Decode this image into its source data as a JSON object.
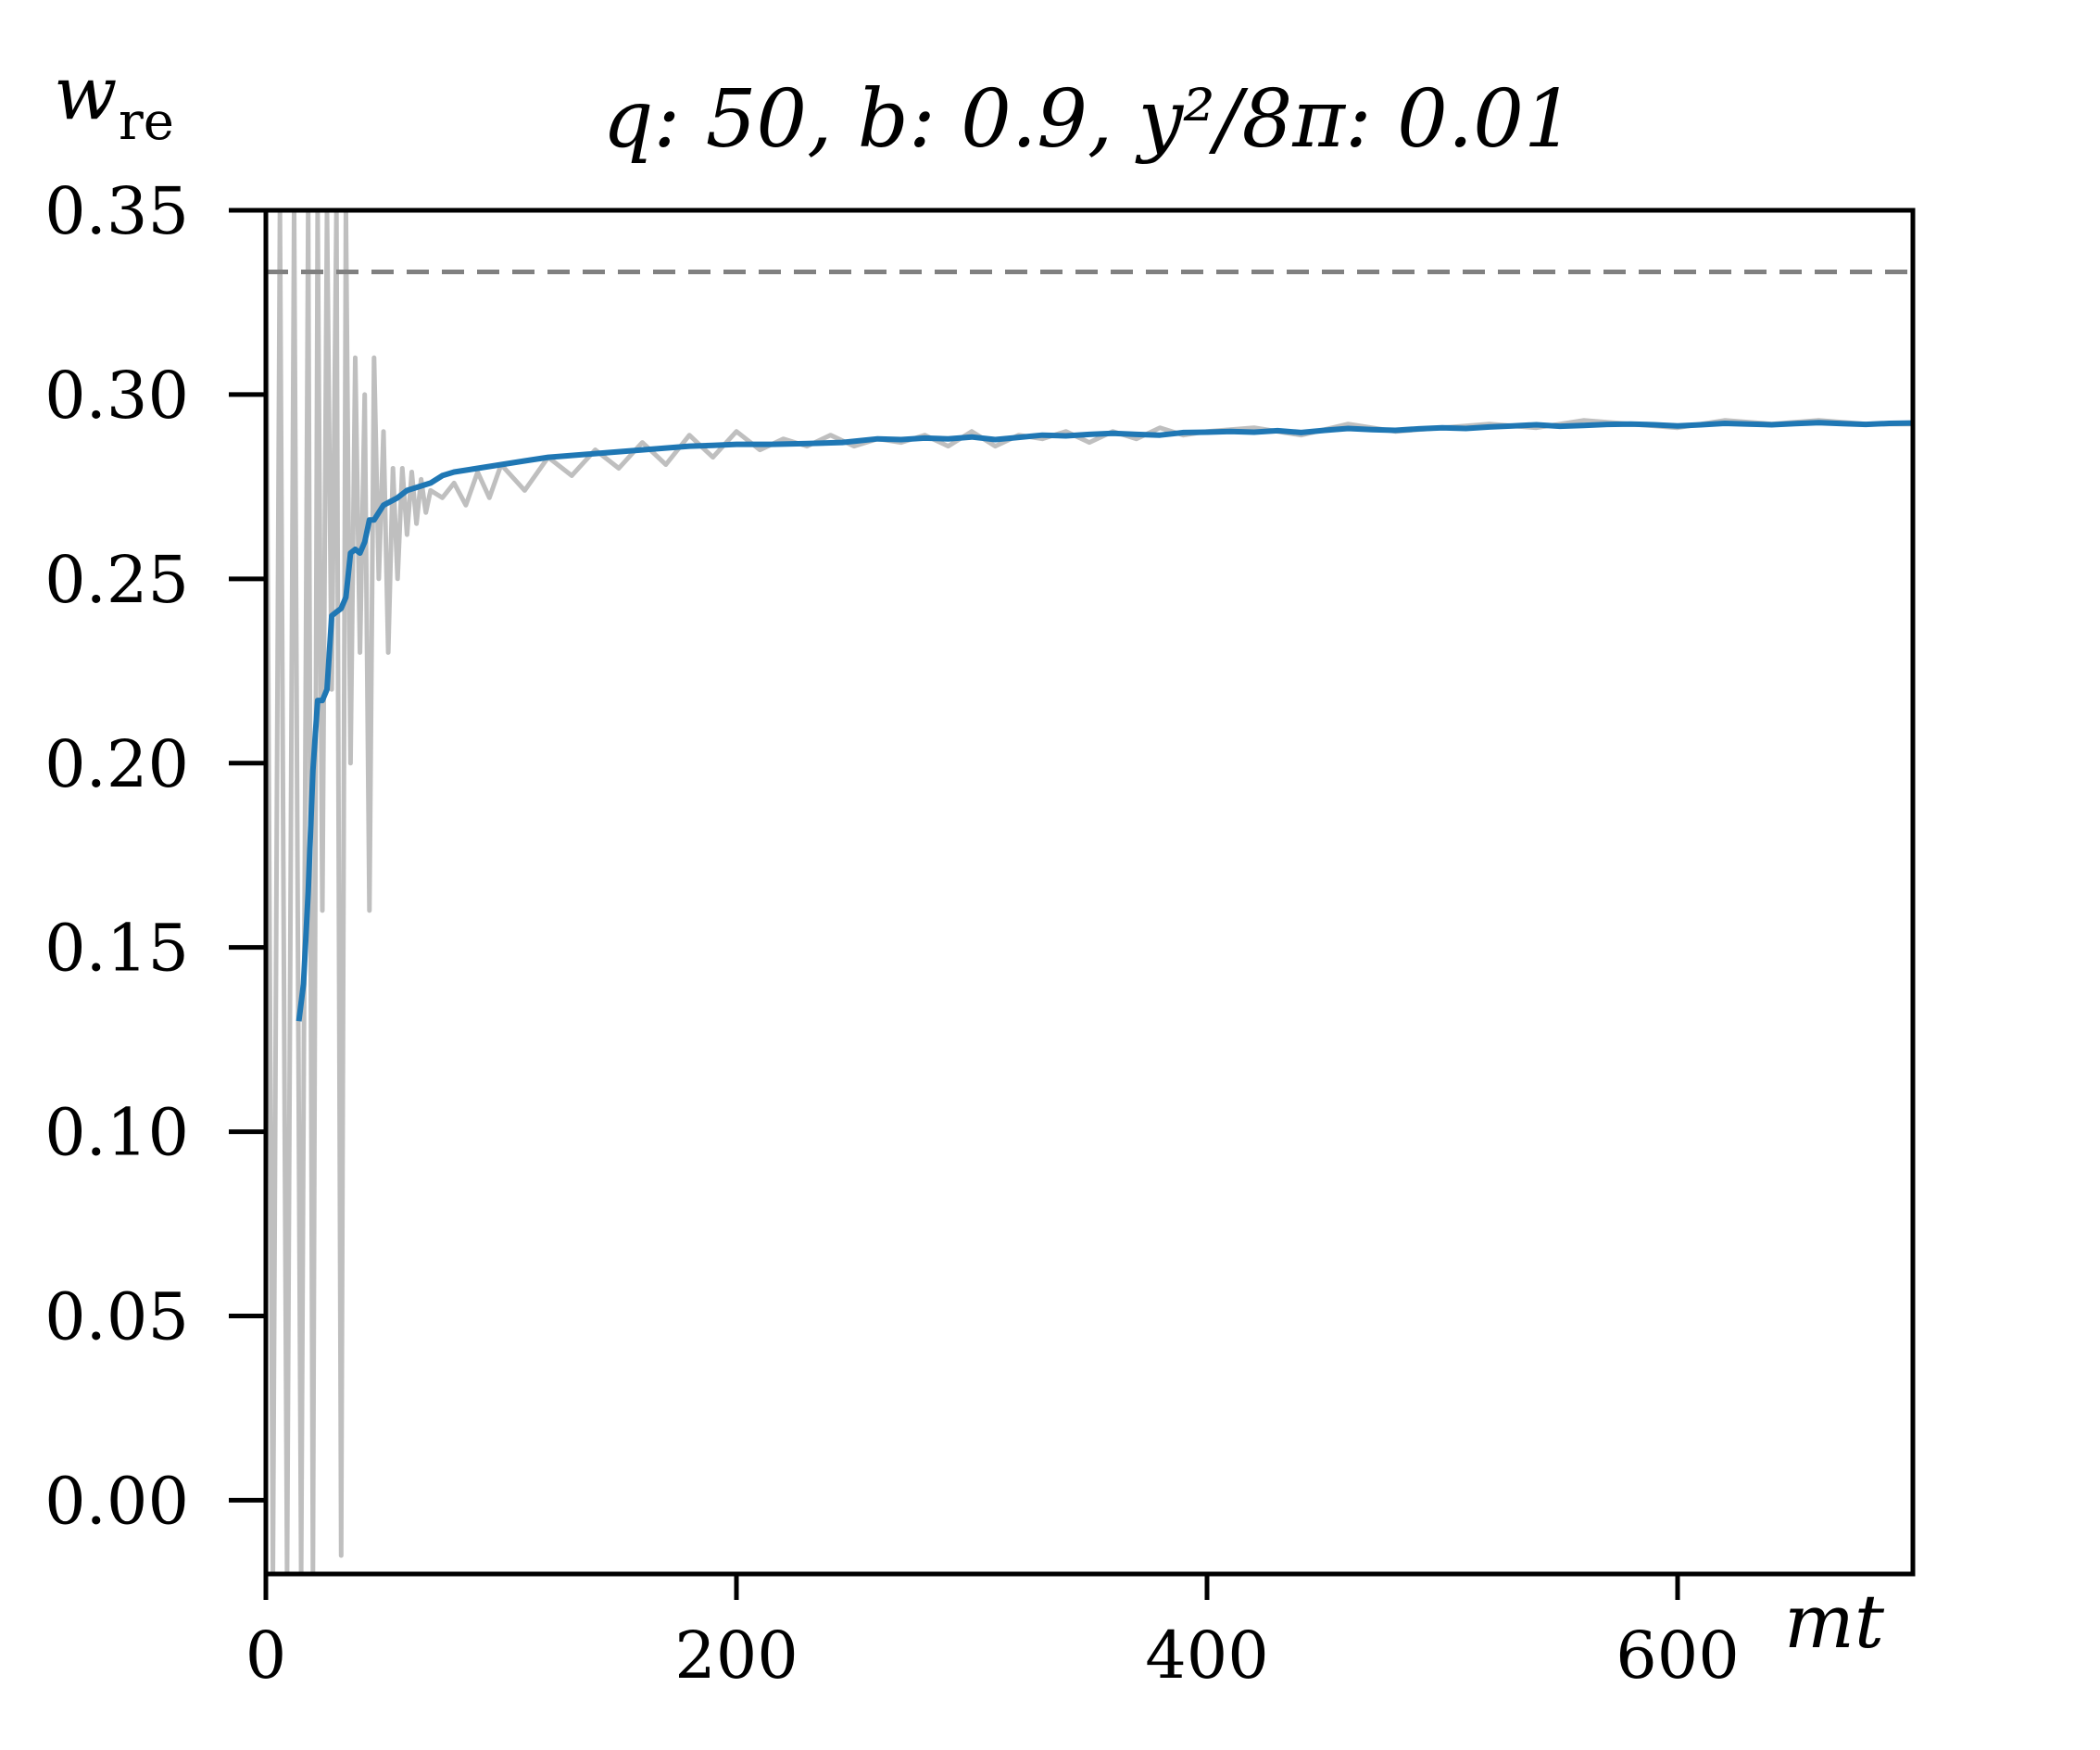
{
  "chart_data": {
    "type": "line",
    "title": "q: 50,  b: 0.9,  y²/8π: 0.01",
    "xlabel": "mt",
    "ylabel_main": "w",
    "ylabel_sub": "re",
    "xlim": [
      0,
      700
    ],
    "ylim": [
      -0.02,
      0.35
    ],
    "x_ticks": [
      0,
      200,
      400,
      600
    ],
    "x_tick_labels": [
      "0",
      "200",
      "400",
      "600"
    ],
    "y_ticks": [
      0.0,
      0.05,
      0.1,
      0.15,
      0.2,
      0.25,
      0.3,
      0.35
    ],
    "y_tick_labels": [
      "0.00",
      "0.05",
      "0.10",
      "0.15",
      "0.20",
      "0.25",
      "0.30",
      "0.35"
    ],
    "grid": false,
    "reference_line": {
      "y": 0.3333,
      "style": "dashed",
      "color": "#808080"
    },
    "series": [
      {
        "style": "raw",
        "color": "#bfbfbf",
        "x": [
          0,
          3,
          6,
          9,
          12,
          15,
          18,
          20,
          22,
          24,
          26,
          28,
          30,
          32,
          34,
          36,
          38,
          40,
          42,
          44,
          46,
          48,
          50,
          52,
          54,
          56,
          58,
          60,
          62,
          64,
          66,
          68,
          70,
          75,
          80,
          85,
          90,
          95,
          100,
          110,
          120,
          130,
          140,
          150,
          160,
          170,
          180,
          190,
          200,
          210,
          220,
          230,
          240,
          250,
          260,
          270,
          280,
          290,
          300,
          310,
          320,
          330,
          340,
          350,
          360,
          370,
          380,
          390,
          400,
          420,
          440,
          460,
          480,
          500,
          520,
          540,
          560,
          580,
          600,
          620,
          640,
          660,
          680,
          700
        ],
        "y": [
          0.35,
          -0.02,
          0.35,
          -0.02,
          0.35,
          -0.02,
          0.35,
          -0.02,
          0.35,
          0.16,
          0.35,
          0.22,
          0.35,
          -0.015,
          0.35,
          0.2,
          0.31,
          0.23,
          0.3,
          0.16,
          0.31,
          0.25,
          0.29,
          0.23,
          0.28,
          0.25,
          0.28,
          0.262,
          0.279,
          0.265,
          0.277,
          0.268,
          0.274,
          0.272,
          0.276,
          0.27,
          0.279,
          0.272,
          0.281,
          0.274,
          0.283,
          0.278,
          0.285,
          0.28,
          0.287,
          0.281,
          0.289,
          0.283,
          0.29,
          0.285,
          0.288,
          0.286,
          0.289,
          0.286,
          0.288,
          0.287,
          0.289,
          0.286,
          0.29,
          0.286,
          0.289,
          0.288,
          0.29,
          0.287,
          0.29,
          0.288,
          0.291,
          0.289,
          0.29,
          0.291,
          0.289,
          0.292,
          0.29,
          0.291,
          0.292,
          0.291,
          0.293,
          0.292,
          0.291,
          0.293,
          0.292,
          0.293,
          0.292,
          0.292
        ]
      },
      {
        "style": "smoothed",
        "color": "#1f77b4",
        "x": [
          14,
          16,
          18,
          20,
          22,
          24,
          26,
          28,
          30,
          32,
          34,
          36,
          38,
          40,
          42,
          44,
          46,
          48,
          50,
          53,
          56,
          60,
          65,
          70,
          75,
          80,
          90,
          100,
          110,
          120,
          130,
          140,
          150,
          160,
          170,
          180,
          190,
          200,
          215,
          230,
          245,
          260,
          270,
          280,
          290,
          300,
          310,
          320,
          330,
          340,
          350,
          360,
          370,
          380,
          390,
          400,
          410,
          420,
          430,
          440,
          450,
          460,
          470,
          480,
          490,
          500,
          510,
          520,
          530,
          540,
          550,
          560,
          570,
          580,
          590,
          600,
          610,
          620,
          630,
          640,
          650,
          660,
          670,
          680,
          690,
          700
        ],
        "y": [
          0.13,
          0.14,
          0.165,
          0.198,
          0.217,
          0.217,
          0.22,
          0.24,
          0.241,
          0.242,
          0.245,
          0.257,
          0.258,
          0.257,
          0.26,
          0.266,
          0.266,
          0.268,
          0.27,
          0.271,
          0.272,
          0.274,
          0.275,
          0.276,
          0.278,
          0.279,
          0.28,
          0.281,
          0.282,
          0.283,
          0.2835,
          0.284,
          0.2845,
          0.285,
          0.2855,
          0.286,
          0.2862,
          0.2865,
          0.2865,
          0.2867,
          0.287,
          0.288,
          0.2878,
          0.2882,
          0.288,
          0.2885,
          0.2878,
          0.2884,
          0.289,
          0.2888,
          0.2892,
          0.2895,
          0.2892,
          0.289,
          0.2897,
          0.2898,
          0.29,
          0.2898,
          0.2902,
          0.2897,
          0.2903,
          0.2908,
          0.2905,
          0.2903,
          0.2907,
          0.291,
          0.2908,
          0.2912,
          0.2915,
          0.2918,
          0.2914,
          0.2916,
          0.2919,
          0.292,
          0.2918,
          0.2915,
          0.2918,
          0.2922,
          0.292,
          0.2918,
          0.2921,
          0.2924,
          0.2921,
          0.2919,
          0.2922,
          0.2923
        ]
      }
    ]
  }
}
